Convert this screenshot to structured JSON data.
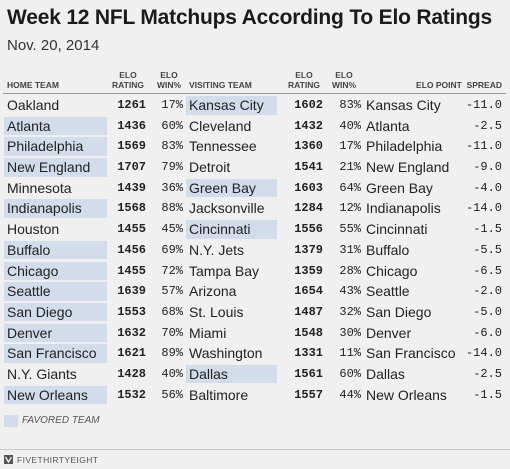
{
  "title": "Week 12 NFL Matchups According To Elo Ratings",
  "subtitle": "Nov. 20, 2014",
  "headers": {
    "home_team": "HOME TEAM",
    "elo_rating": "ELO\nRATING",
    "elo_win": "ELO\nWIN%",
    "visiting_team": "VISITING TEAM",
    "elo_rating2": "ELO\nRATING",
    "elo_win2": "ELO\nWIN%",
    "point_spread": "ELO POINT  SPREAD"
  },
  "legend": "FAVORED TEAM",
  "colors": {
    "favored_highlight": "#d3dcea",
    "background": "#f0f0f0"
  },
  "footer_brand": "FIVETHIRTYEIGHT",
  "chart_data": {
    "type": "table",
    "columns": [
      "HOME TEAM",
      "ELO RATING",
      "ELO WIN%",
      "VISITING TEAM",
      "ELO RATING",
      "ELO WIN%",
      "ELO POINT",
      "SPREAD"
    ],
    "rows": [
      {
        "home": "Oakland",
        "home_elo": "1261",
        "home_win": "17%",
        "visit": "Kansas City",
        "visit_elo": "1602",
        "visit_win": "83%",
        "fav": "Kansas City",
        "spread": "-11.0",
        "favored": "visit"
      },
      {
        "home": "Atlanta",
        "home_elo": "1436",
        "home_win": "60%",
        "visit": "Cleveland",
        "visit_elo": "1432",
        "visit_win": "40%",
        "fav": "Atlanta",
        "spread": "-2.5",
        "favored": "home"
      },
      {
        "home": "Philadelphia",
        "home_elo": "1569",
        "home_win": "83%",
        "visit": "Tennessee",
        "visit_elo": "1360",
        "visit_win": "17%",
        "fav": "Philadelphia",
        "spread": "-11.0",
        "favored": "home"
      },
      {
        "home": "New England",
        "home_elo": "1707",
        "home_win": "79%",
        "visit": "Detroit",
        "visit_elo": "1541",
        "visit_win": "21%",
        "fav": "New England",
        "spread": "-9.0",
        "favored": "home"
      },
      {
        "home": "Minnesota",
        "home_elo": "1439",
        "home_win": "36%",
        "visit": "Green Bay",
        "visit_elo": "1603",
        "visit_win": "64%",
        "fav": "Green Bay",
        "spread": "-4.0",
        "favored": "visit"
      },
      {
        "home": "Indianapolis",
        "home_elo": "1568",
        "home_win": "88%",
        "visit": "Jacksonville",
        "visit_elo": "1284",
        "visit_win": "12%",
        "fav": "Indianapolis",
        "spread": "-14.0",
        "favored": "home"
      },
      {
        "home": "Houston",
        "home_elo": "1455",
        "home_win": "45%",
        "visit": "Cincinnati",
        "visit_elo": "1556",
        "visit_win": "55%",
        "fav": "Cincinnati",
        "spread": "-1.5",
        "favored": "visit"
      },
      {
        "home": "Buffalo",
        "home_elo": "1456",
        "home_win": "69%",
        "visit": "N.Y. Jets",
        "visit_elo": "1379",
        "visit_win": "31%",
        "fav": "Buffalo",
        "spread": "-5.5",
        "favored": "home"
      },
      {
        "home": "Chicago",
        "home_elo": "1455",
        "home_win": "72%",
        "visit": "Tampa Bay",
        "visit_elo": "1359",
        "visit_win": "28%",
        "fav": "Chicago",
        "spread": "-6.5",
        "favored": "home"
      },
      {
        "home": "Seattle",
        "home_elo": "1639",
        "home_win": "57%",
        "visit": "Arizona",
        "visit_elo": "1654",
        "visit_win": "43%",
        "fav": "Seattle",
        "spread": "-2.0",
        "favored": "home"
      },
      {
        "home": "San Diego",
        "home_elo": "1553",
        "home_win": "68%",
        "visit": "St. Louis",
        "visit_elo": "1487",
        "visit_win": "32%",
        "fav": "San Diego",
        "spread": "-5.0",
        "favored": "home"
      },
      {
        "home": "Denver",
        "home_elo": "1632",
        "home_win": "70%",
        "visit": "Miami",
        "visit_elo": "1548",
        "visit_win": "30%",
        "fav": "Denver",
        "spread": "-6.0",
        "favored": "home"
      },
      {
        "home": "San Francisco",
        "home_elo": "1621",
        "home_win": "89%",
        "visit": "Washington",
        "visit_elo": "1331",
        "visit_win": "11%",
        "fav": "San Francisco",
        "spread": "-14.0",
        "favored": "home"
      },
      {
        "home": "N.Y. Giants",
        "home_elo": "1428",
        "home_win": "40%",
        "visit": "Dallas",
        "visit_elo": "1561",
        "visit_win": "60%",
        "fav": "Dallas",
        "spread": "-2.5",
        "favored": "visit"
      },
      {
        "home": "New Orleans",
        "home_elo": "1532",
        "home_win": "56%",
        "visit": "Baltimore",
        "visit_elo": "1557",
        "visit_win": "44%",
        "fav": "New Orleans",
        "spread": "-1.5",
        "favored": "home"
      }
    ]
  }
}
